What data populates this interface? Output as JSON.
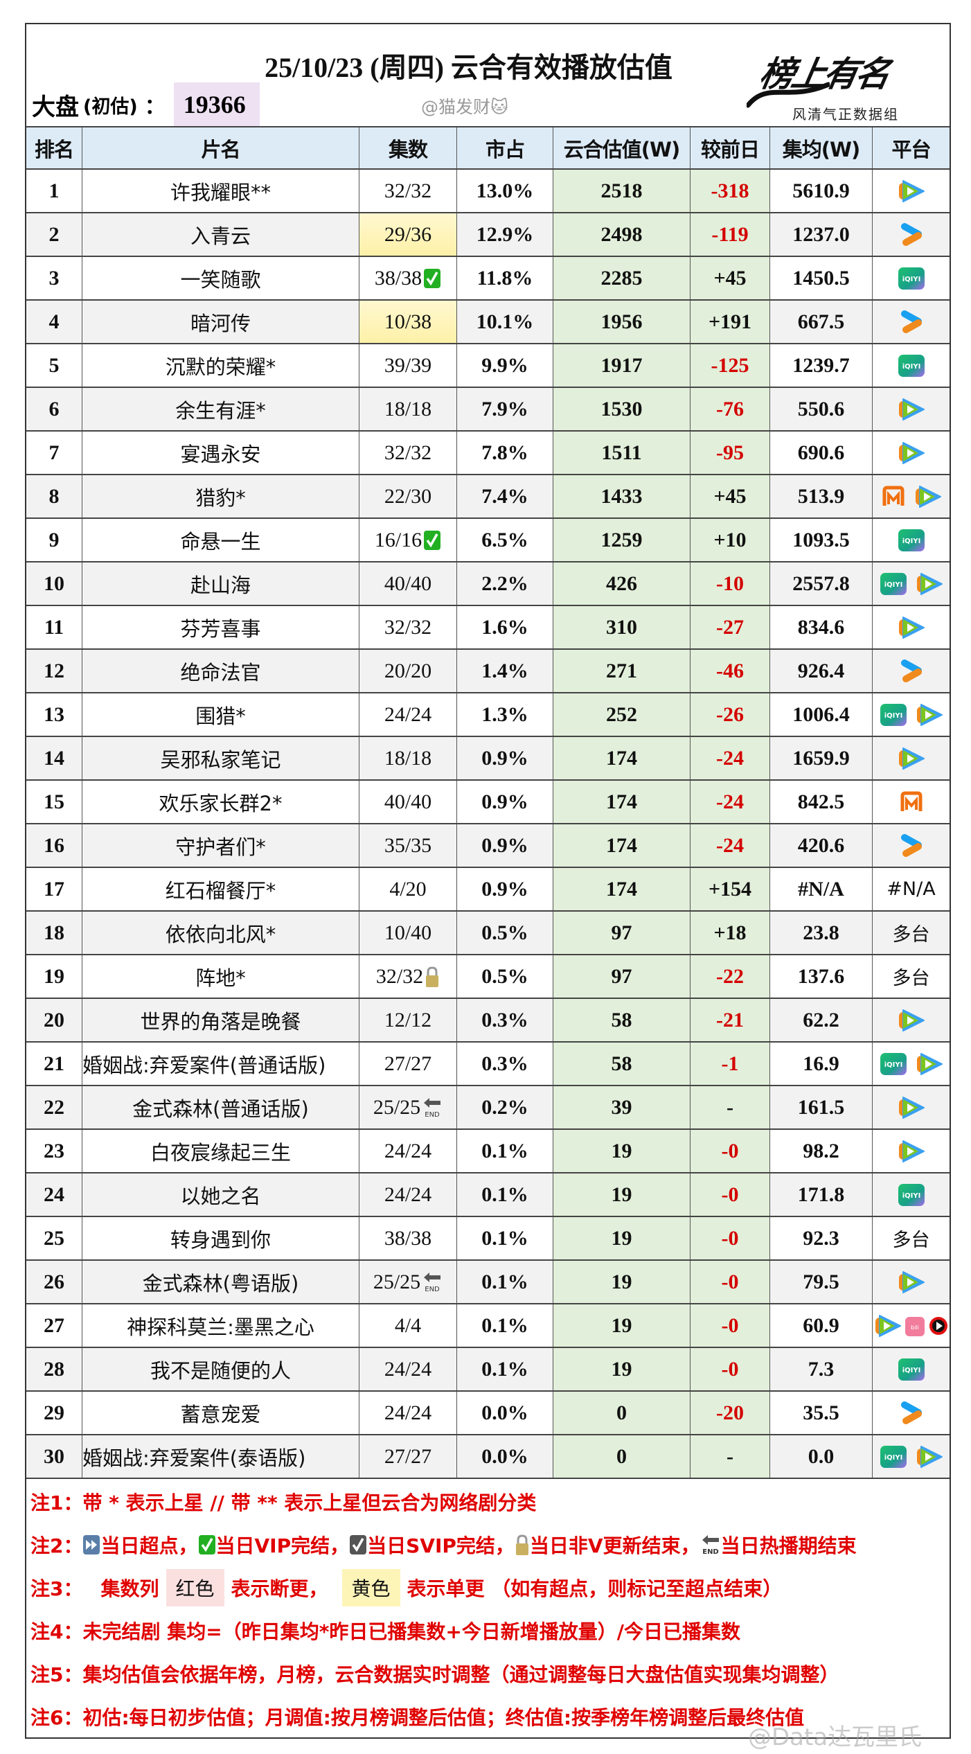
{
  "header": {
    "title": "25/10/23 (周四) 云合有效播放估值",
    "dapan_label": "大盘",
    "dapan_sub": "(初估)",
    "dapan_colon": "：",
    "dapan_value": "19366",
    "handle": "@猫发财🐱",
    "logo_text": "榜上有名",
    "logo_tagline": "风清气正数据组"
  },
  "columns": [
    "排名",
    "片名",
    "集数",
    "市占",
    "云合估值(W)",
    "较前日",
    "集均(W)",
    "平台"
  ],
  "colors": {
    "header_bg": "#ddebf7",
    "value_bg": "#e2efda",
    "negative": "#d40000",
    "note": "#e00000",
    "dapan_bg": "#ede1f2",
    "single_update": "#fdf1a8"
  },
  "rows": [
    {
      "rank": "1",
      "name": "许我耀眼**",
      "eps": "32/32",
      "share": "13.0%",
      "value": "2518",
      "diff": "-318",
      "avg": "5610.9",
      "platforms": [
        "tencent-video-icon"
      ]
    },
    {
      "rank": "2",
      "name": "入青云",
      "eps": "29/36",
      "eps_bg": "yellow",
      "share": "12.9%",
      "value": "2498",
      "diff": "-119",
      "avg": "1237.0",
      "platforms": [
        "youku-icon"
      ]
    },
    {
      "rank": "3",
      "name": "一笑随歌",
      "eps": "38/38",
      "eps_mark": "vip-complete-check-icon",
      "share": "11.8%",
      "value": "2285",
      "diff": "+45",
      "avg": "1450.5",
      "platforms": [
        "iqiyi-icon"
      ]
    },
    {
      "rank": "4",
      "name": "暗河传",
      "eps": "10/38",
      "eps_bg": "yellow",
      "share": "10.1%",
      "value": "1956",
      "diff": "+191",
      "avg": "667.5",
      "platforms": [
        "youku-icon"
      ]
    },
    {
      "rank": "5",
      "name": "沉默的荣耀*",
      "eps": "39/39",
      "share": "9.9%",
      "value": "1917",
      "diff": "-125",
      "avg": "1239.7",
      "platforms": [
        "iqiyi-icon"
      ]
    },
    {
      "rank": "6",
      "name": "余生有涯*",
      "eps": "18/18",
      "share": "7.9%",
      "value": "1530",
      "diff": "-76",
      "avg": "550.6",
      "platforms": [
        "tencent-video-icon"
      ]
    },
    {
      "rank": "7",
      "name": "宴遇永安",
      "eps": "32/32",
      "share": "7.8%",
      "value": "1511",
      "diff": "-95",
      "avg": "690.6",
      "platforms": [
        "tencent-video-icon"
      ]
    },
    {
      "rank": "8",
      "name": "猎豹*",
      "eps": "22/30",
      "share": "7.4%",
      "value": "1433",
      "diff": "+45",
      "avg": "513.9",
      "platforms": [
        "mango-tv-icon",
        "tencent-video-icon"
      ]
    },
    {
      "rank": "9",
      "name": "命悬一生",
      "eps": "16/16",
      "eps_mark": "vip-complete-check-icon",
      "share": "6.5%",
      "value": "1259",
      "diff": "+10",
      "avg": "1093.5",
      "platforms": [
        "iqiyi-icon"
      ]
    },
    {
      "rank": "10",
      "name": "赴山海",
      "eps": "40/40",
      "share": "2.2%",
      "value": "426",
      "diff": "-10",
      "avg": "2557.8",
      "platforms": [
        "iqiyi-icon",
        "tencent-video-icon"
      ]
    },
    {
      "rank": "11",
      "name": "芬芳喜事",
      "eps": "32/32",
      "share": "1.6%",
      "value": "310",
      "diff": "-27",
      "avg": "834.6",
      "platforms": [
        "tencent-video-icon"
      ]
    },
    {
      "rank": "12",
      "name": "绝命法官",
      "eps": "20/20",
      "share": "1.4%",
      "value": "271",
      "diff": "-46",
      "avg": "926.4",
      "platforms": [
        "youku-icon"
      ]
    },
    {
      "rank": "13",
      "name": "围猎*",
      "eps": "24/24",
      "share": "1.3%",
      "value": "252",
      "diff": "-26",
      "avg": "1006.4",
      "platforms": [
        "iqiyi-icon",
        "tencent-video-icon"
      ]
    },
    {
      "rank": "14",
      "name": "吴邪私家笔记",
      "eps": "18/18",
      "share": "0.9%",
      "value": "174",
      "diff": "-24",
      "avg": "1659.9",
      "platforms": [
        "tencent-video-icon"
      ]
    },
    {
      "rank": "15",
      "name": "欢乐家长群2*",
      "eps": "40/40",
      "share": "0.9%",
      "value": "174",
      "diff": "-24",
      "avg": "842.5",
      "platforms": [
        "mango-tv-icon"
      ]
    },
    {
      "rank": "16",
      "name": "守护者们*",
      "eps": "35/35",
      "share": "0.9%",
      "value": "174",
      "diff": "-24",
      "avg": "420.6",
      "platforms": [
        "youku-icon"
      ]
    },
    {
      "rank": "17",
      "name": "红石榴餐厅*",
      "eps": "4/20",
      "share": "0.9%",
      "value": "174",
      "diff": "+154",
      "avg": "#N/A",
      "platform_text": "#N/A",
      "platforms": []
    },
    {
      "rank": "18",
      "name": "依依向北风*",
      "eps": "10/40",
      "share": "0.5%",
      "value": "97",
      "diff": "+18",
      "avg": "23.8",
      "platform_text": "多台",
      "platforms": []
    },
    {
      "rank": "19",
      "name": "阵地*",
      "eps": "32/32",
      "eps_mark": "lock-icon",
      "share": "0.5%",
      "value": "97",
      "diff": "-22",
      "avg": "137.6",
      "platform_text": "多台",
      "platforms": []
    },
    {
      "rank": "20",
      "name": "世界的角落是晚餐",
      "eps": "12/12",
      "share": "0.3%",
      "value": "58",
      "diff": "-21",
      "avg": "62.2",
      "platforms": [
        "tencent-video-icon"
      ]
    },
    {
      "rank": "21",
      "name": "婚姻战:弃爱案件(普通话版)",
      "eps": "27/27",
      "share": "0.3%",
      "value": "58",
      "diff": "-1",
      "avg": "16.9",
      "platforms": [
        "iqiyi-icon",
        "tencent-video-icon"
      ]
    },
    {
      "rank": "22",
      "name": "金式森林(普通话版)",
      "eps": "25/25",
      "eps_mark": "end-arrow-icon",
      "share": "0.2%",
      "value": "39",
      "diff": "-",
      "avg": "161.5",
      "platforms": [
        "tencent-video-icon"
      ]
    },
    {
      "rank": "23",
      "name": "白夜宸缘起三生",
      "eps": "24/24",
      "share": "0.1%",
      "value": "19",
      "diff": "-0",
      "avg": "98.2",
      "platforms": [
        "tencent-video-icon"
      ]
    },
    {
      "rank": "24",
      "name": "以她之名",
      "eps": "24/24",
      "share": "0.1%",
      "value": "19",
      "diff": "-0",
      "avg": "171.8",
      "platforms": [
        "iqiyi-icon"
      ]
    },
    {
      "rank": "25",
      "name": "转身遇到你",
      "eps": "38/38",
      "share": "0.1%",
      "value": "19",
      "diff": "-0",
      "avg": "92.3",
      "platform_text": "多台",
      "platforms": []
    },
    {
      "rank": "26",
      "name": "金式森林(粤语版)",
      "eps": "25/25",
      "eps_mark": "end-arrow-icon",
      "share": "0.1%",
      "value": "19",
      "diff": "-0",
      "avg": "79.5",
      "platforms": [
        "tencent-video-icon"
      ]
    },
    {
      "rank": "27",
      "name": "神探科莫兰:墨黑之心",
      "eps": "4/4",
      "share": "0.1%",
      "value": "19",
      "diff": "-0",
      "avg": "60.9",
      "platforms": [
        "tencent-video-icon",
        "bilibili-icon",
        "red-play-icon"
      ]
    },
    {
      "rank": "28",
      "name": "我不是随便的人",
      "eps": "24/24",
      "share": "0.1%",
      "value": "19",
      "diff": "-0",
      "avg": "7.3",
      "platforms": [
        "iqiyi-icon"
      ]
    },
    {
      "rank": "29",
      "name": "蓄意宠爱",
      "eps": "24/24",
      "share": "0.0%",
      "value": "0",
      "diff": "-20",
      "avg": "35.5",
      "platforms": [
        "youku-icon"
      ]
    },
    {
      "rank": "30",
      "name": "婚姻战:弃爱案件(泰语版)",
      "eps": "27/27",
      "share": "0.0%",
      "value": "0",
      "diff": "-",
      "avg": "0.0",
      "platforms": [
        "iqiyi-icon",
        "tencent-video-icon"
      ]
    }
  ],
  "notes": {
    "n1": "注1：带 * 表示上星 // 带 ** 表示上星但云合为网络剧分类",
    "n2_prefix": "注2：",
    "n2_items": [
      "当日超点，",
      "当日VIP完结，",
      "当日SVIP完结，",
      "当日非V更新结束，",
      "当日热播期结束"
    ],
    "n3_prefix": "注3：",
    "n3_col": "集数列",
    "n3_red": "红色",
    "n3_red_desc": "表示断更，",
    "n3_yellow": "黄色",
    "n3_yellow_desc": "表示单更 （如有超点，则标记至超点结束）",
    "n4": "注4：未完结剧 集均=（昨日集均*昨日已播集数+今日新增播放量）/今日已播集数",
    "n5": "注5：集均估值会依据年榜，月榜，云合数据实时调整（通过调整每日大盘估值实现集均调整）",
    "n6": "注6：初估:每日初步估值；月调值:按月榜调整后估值；终估值:按季榜年榜调整后最终估值"
  },
  "watermark": "@Data达瓦里氏"
}
